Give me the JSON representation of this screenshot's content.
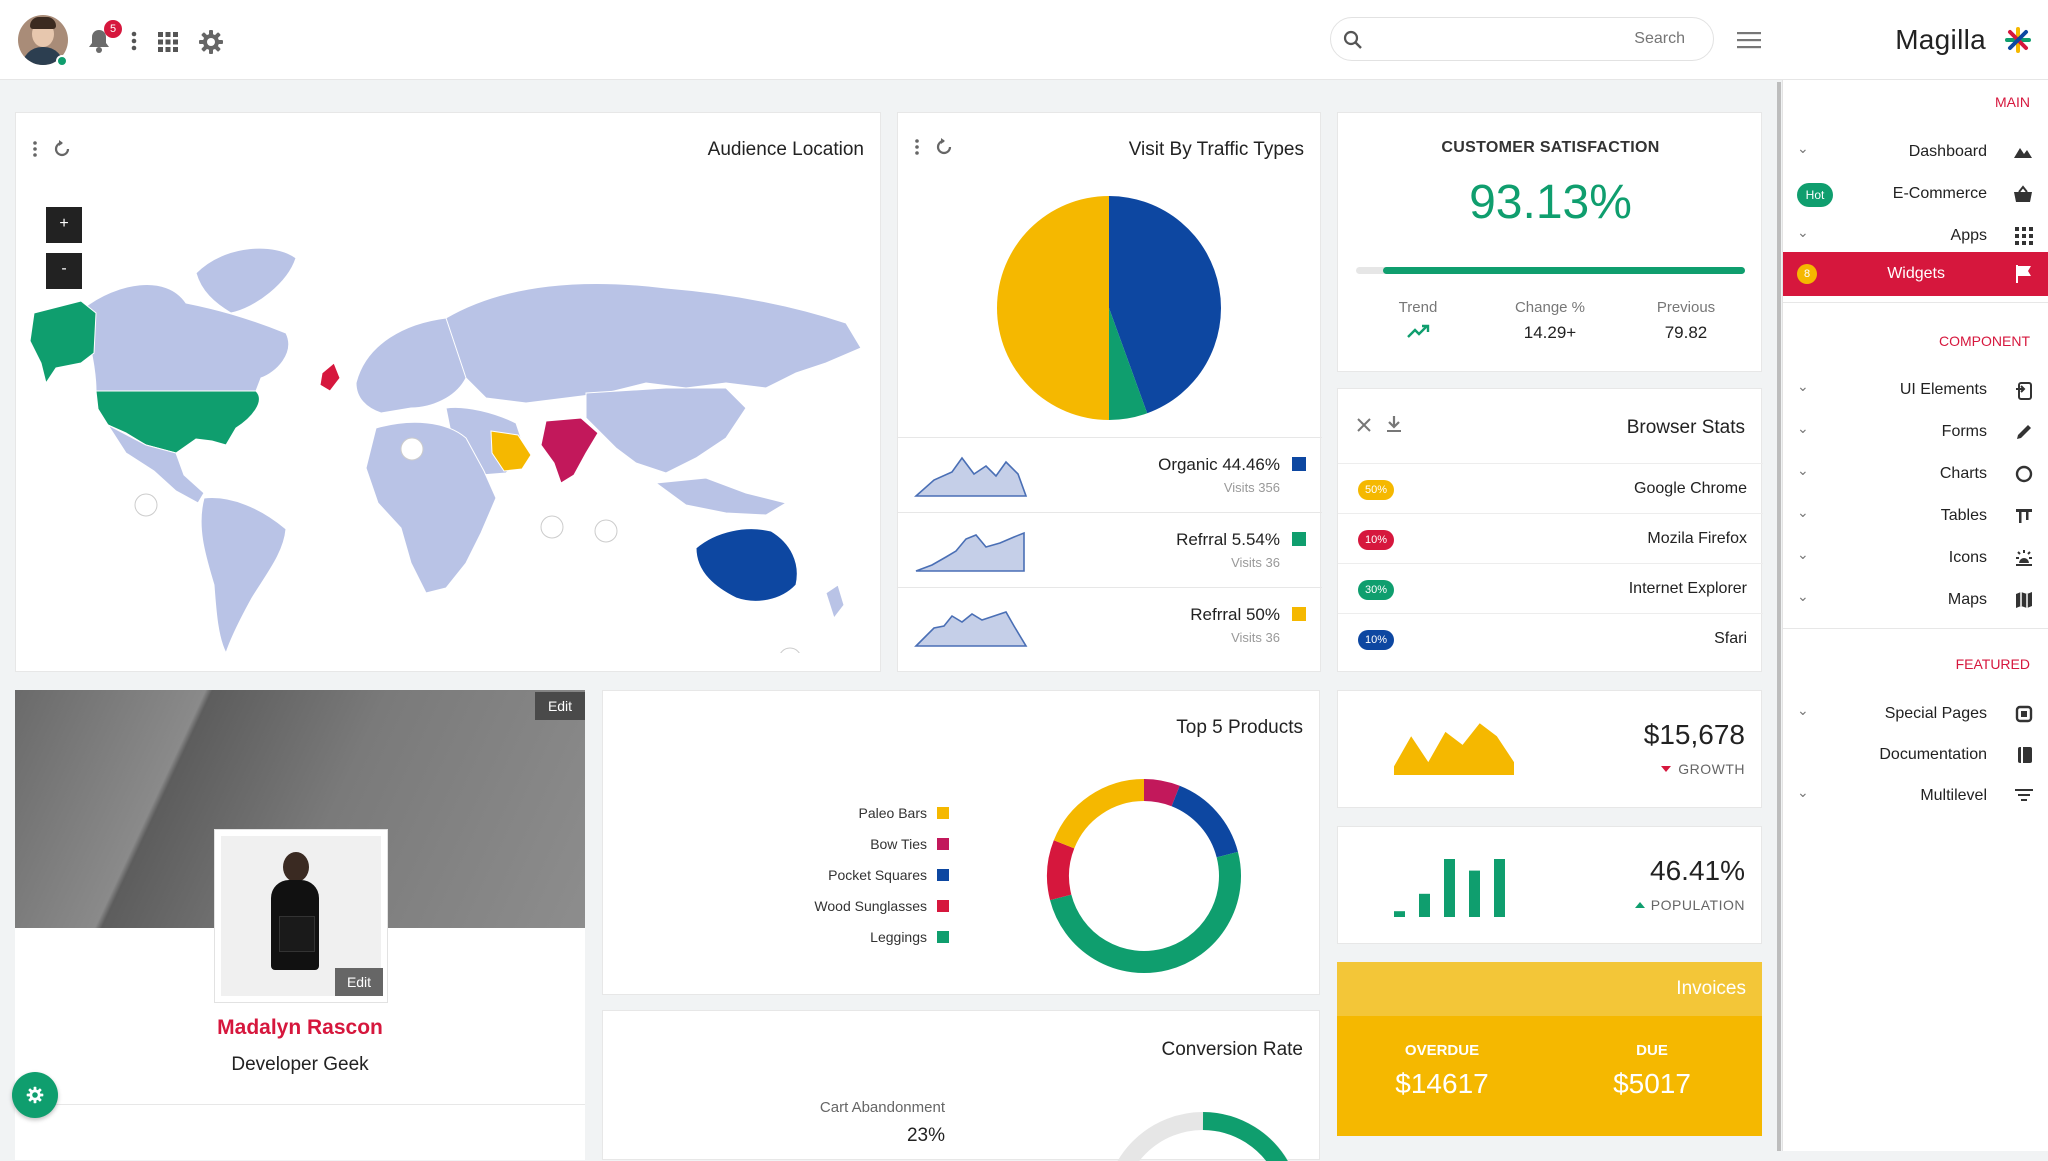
{
  "header": {
    "notif_count": "5",
    "search_placeholder": "Search",
    "brand": "Magilla"
  },
  "colors": {
    "accent_red": "#d6173d",
    "green": "#0f9e6e",
    "blue": "#0d47a1",
    "yellow": "#f5b800",
    "crimson": "#c2185b",
    "map_land": "#b9c3e6"
  },
  "sidebar": {
    "sections": [
      {
        "title": "Main",
        "items": [
          {
            "label": "Dashboard",
            "icon": "dashboard-icon"
          },
          {
            "label": "E-Commerce",
            "badge": "Hot",
            "icon": "basket-icon"
          },
          {
            "label": "Apps",
            "icon": "grid-icon"
          },
          {
            "label": "Widgets",
            "badge": "8",
            "active": true,
            "icon": "flag-icon"
          }
        ]
      },
      {
        "title": "Component",
        "items": [
          {
            "label": "UI Elements",
            "icon": "ui-icon"
          },
          {
            "label": "Forms",
            "icon": "pencil-icon"
          },
          {
            "label": "Charts",
            "icon": "chart-circle-icon"
          },
          {
            "label": "Tables",
            "icon": "table-icon"
          },
          {
            "label": "Icons",
            "icon": "sun-icon"
          },
          {
            "label": "Maps",
            "icon": "map-icon"
          }
        ]
      },
      {
        "title": "Featured",
        "items": [
          {
            "label": "Special Pages",
            "icon": "pages-icon"
          },
          {
            "label": "Documentation",
            "icon": "book-icon"
          },
          {
            "label": "Multilevel",
            "icon": "filter-icon"
          }
        ]
      }
    ]
  },
  "audience": {
    "title": "Audience Location",
    "zoom_in": "+",
    "zoom_out": "-"
  },
  "traffic": {
    "title": "Visit By Traffic Types",
    "rows": [
      {
        "label": "Organic 44.46%",
        "sub": "Visits 356",
        "color": "#0d47a1"
      },
      {
        "label": "Refrral 5.54%",
        "sub": "Visits 36",
        "color": "#0f9e6e"
      },
      {
        "label": "Refrral 50%",
        "sub": "Visits 36",
        "color": "#f5b800"
      }
    ]
  },
  "satisfaction": {
    "title": "CUSTOMER SATISFACTION",
    "value": "93.13%",
    "trend_label": "Trend",
    "change_label": "Change %",
    "change_value": "14.29+",
    "previous_label": "Previous",
    "previous_value": "79.82"
  },
  "browser": {
    "title": "Browser Stats",
    "rows": [
      {
        "badge": "50%",
        "name": "Google Chrome",
        "color": "#f5b800"
      },
      {
        "badge": "10%",
        "name": "Mozila Firefox",
        "color": "#d6173d"
      },
      {
        "badge": "30%",
        "name": "Internet Explorer",
        "color": "#0f9e6e"
      },
      {
        "badge": "10%",
        "name": "Sfari",
        "color": "#0d47a1"
      }
    ]
  },
  "profile": {
    "edit_cover": "Edit",
    "edit_photo": "Edit",
    "name": "Madalyn Rascon",
    "role": "Developer Geek"
  },
  "products": {
    "title": "Top 5 Products",
    "items": [
      {
        "name": "Paleo Bars",
        "color": "#f5b800"
      },
      {
        "name": "Bow Ties",
        "color": "#c2185b"
      },
      {
        "name": "Pocket Squares",
        "color": "#0d47a1"
      },
      {
        "name": "Wood Sunglasses",
        "color": "#d6173d"
      },
      {
        "name": "Leggings",
        "color": "#0f9e6e"
      }
    ]
  },
  "growth": {
    "value": "$15,678",
    "label": "GROWTH"
  },
  "population": {
    "value": "46.41%",
    "label": "POPULATION"
  },
  "conversion": {
    "title": "Conversion Rate",
    "label": "Cart Abandonment",
    "value": "23%"
  },
  "invoices": {
    "title": "Invoices",
    "overdue_label": "OVERDUE",
    "overdue_value": "$14617",
    "due_label": "DUE",
    "due_value": "$5017"
  },
  "chart_data": [
    {
      "type": "pie",
      "title": "Visit By Traffic Types",
      "categories": [
        "Organic",
        "Refrral",
        "Refrral"
      ],
      "values": [
        44.46,
        5.54,
        50
      ],
      "colors": [
        "#0d47a1",
        "#0f9e6e",
        "#f5b800"
      ]
    },
    {
      "type": "pie",
      "title": "Top 5 Products",
      "categories": [
        "Paleo Bars",
        "Bow Ties",
        "Pocket Squares",
        "Wood Sunglasses",
        "Leggings"
      ],
      "values": [
        19,
        6,
        15,
        10,
        50
      ],
      "colors": [
        "#f5b800",
        "#c2185b",
        "#0d47a1",
        "#d6173d",
        "#0f9e6e"
      ]
    },
    {
      "type": "area",
      "title": "Growth",
      "values": [
        2,
        9,
        3,
        10,
        7,
        12,
        9,
        3
      ],
      "ylim": [
        0,
        13
      ]
    },
    {
      "type": "bar",
      "title": "Population",
      "values": [
        1,
        4,
        10,
        8,
        10
      ],
      "ylim": [
        0,
        10
      ]
    }
  ]
}
